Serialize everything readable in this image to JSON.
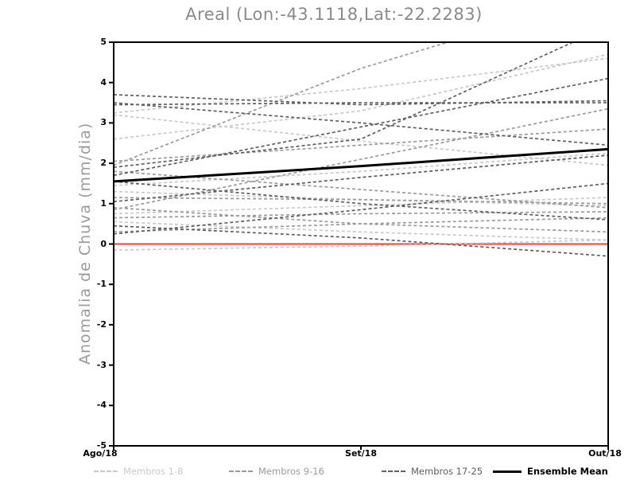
{
  "page": {
    "background": "#ffffff"
  },
  "chart_data": {
    "type": "line",
    "title": "Areal (Lon:-43.1118,Lat:-22.2283)",
    "xlabel": "",
    "ylabel": "Anomalia de Chuva (mm/dia)",
    "x_ticks": [
      "Ago/18",
      "Set/18",
      "Out/18"
    ],
    "y_ticks": [
      5,
      4,
      3,
      2,
      1,
      0,
      -1,
      -2,
      -3,
      -4,
      -5
    ],
    "ylim": [
      -5,
      5
    ],
    "grid": false,
    "legend_position": "bottom",
    "title_color": "#8a8a8a",
    "axis_label_color": "#9a9a9a",
    "frame_color": "#000000",
    "zero_line": {
      "value": 0,
      "color": "#f04038",
      "style": "solid"
    },
    "groups": [
      {
        "name": "Membros 1-8",
        "label": "Membros 1-8",
        "color": "#c9c9c9",
        "style": "dashed",
        "members": [
          [
            3.25,
            3.85,
            4.6
          ],
          [
            2.6,
            3.3,
            4.7
          ],
          [
            3.2,
            2.55,
            1.95
          ],
          [
            1.45,
            1.8,
            2.25
          ],
          [
            1.3,
            1.1,
            0.95
          ],
          [
            0.75,
            0.95,
            1.15
          ],
          [
            0.55,
            0.3,
            0.1
          ],
          [
            -0.15,
            -0.05,
            0.1
          ]
        ]
      },
      {
        "name": "Membros 9-16",
        "label": "Membros 9-16",
        "color": "#9b9b9b",
        "style": "dashed",
        "members": [
          [
            1.95,
            4.35,
            6.2
          ],
          [
            0.85,
            2.1,
            3.35
          ],
          [
            2.05,
            2.45,
            2.85
          ],
          [
            1.15,
            1.1,
            1.0
          ],
          [
            0.9,
            0.5,
            0.3
          ],
          [
            0.3,
            0.5,
            0.65
          ],
          [
            1.8,
            1.35,
            0.9
          ],
          [
            0.65,
            0.75,
            0.8
          ]
        ]
      },
      {
        "name": "Membros 17-25",
        "label": "Membros 17-25",
        "color": "#5f5f5f",
        "style": "dashed",
        "members": [
          [
            3.7,
            3.45,
            3.55
          ],
          [
            3.5,
            3.0,
            2.45
          ],
          [
            3.45,
            3.5,
            3.5
          ],
          [
            1.9,
            2.6,
            5.4
          ],
          [
            1.7,
            2.9,
            4.1
          ],
          [
            1.55,
            1.0,
            0.6
          ],
          [
            1.05,
            1.65,
            2.2
          ],
          [
            0.25,
            0.85,
            1.5
          ],
          [
            0.45,
            0.15,
            -0.3
          ]
        ]
      }
    ],
    "ensemble_mean": {
      "name": "Ensemble Mean",
      "label": "Ensemble Mean",
      "color": "#000000",
      "style": "solid",
      "values": [
        1.55,
        1.93,
        2.35
      ]
    }
  }
}
